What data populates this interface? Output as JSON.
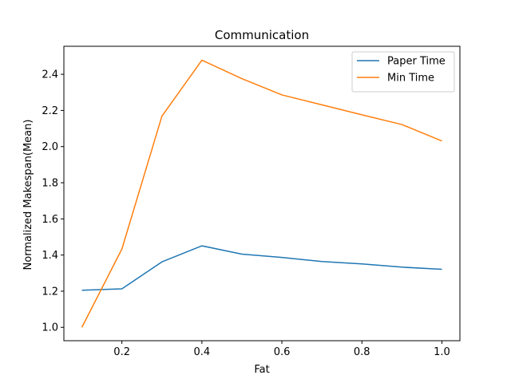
{
  "chart_data": {
    "type": "line",
    "title": "Communication",
    "xlabel": "Fat",
    "ylabel": "Normalized Makespan(Mean)",
    "xlim": [
      0.055,
      1.045
    ],
    "ylim": [
      0.926,
      2.555
    ],
    "xticks": [
      0.2,
      0.4,
      0.6,
      0.8,
      1.0
    ],
    "xtick_labels": [
      "0.2",
      "0.4",
      "0.6",
      "0.8",
      "1.0"
    ],
    "yticks": [
      1.0,
      1.2,
      1.4,
      1.6,
      1.8,
      2.0,
      2.2,
      2.4
    ],
    "ytick_labels": [
      "1.0",
      "1.2",
      "1.4",
      "1.6",
      "1.8",
      "2.0",
      "2.2",
      "2.4"
    ],
    "grid": false,
    "legend_position": "top-right",
    "x": [
      0.1,
      0.2,
      0.3,
      0.4,
      0.5,
      0.6,
      0.7,
      0.8,
      0.9,
      1.0
    ],
    "series": [
      {
        "name": "Paper Time",
        "color": "#1f77b4",
        "values": [
          1.205,
          1.213,
          1.362,
          1.451,
          1.405,
          1.387,
          1.364,
          1.351,
          1.333,
          1.321
        ]
      },
      {
        "name": "Min Time",
        "color": "#ff7f0e",
        "values": [
          1.0,
          1.433,
          2.168,
          2.478,
          2.376,
          2.286,
          2.231,
          2.176,
          2.122,
          2.031
        ]
      }
    ]
  }
}
